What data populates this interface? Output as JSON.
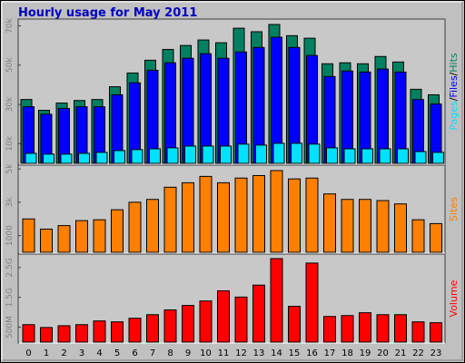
{
  "chart_data": [
    {
      "type": "bar",
      "title": "Hourly usage for May 2011",
      "legend_separator": "/",
      "ylim": [
        0,
        73000
      ],
      "yticks": [
        {
          "value": 10000,
          "label": "10k"
        },
        {
          "value": 30000,
          "label": "30k"
        },
        {
          "value": 50000,
          "label": "50k"
        },
        {
          "value": 70000,
          "label": "70k"
        }
      ],
      "series": [
        {
          "name": "Hits",
          "color": "#008060",
          "values": [
            32500,
            27000,
            30700,
            32000,
            32500,
            39000,
            46000,
            52500,
            58000,
            60000,
            62800,
            61400,
            68800,
            67000,
            70700,
            65000,
            63700,
            50700,
            51200,
            50700,
            54400,
            51600,
            37700,
            34900
          ]
        },
        {
          "name": "Files",
          "color": "#0000ff",
          "values": [
            28800,
            25000,
            27900,
            28800,
            28800,
            34900,
            41000,
            47400,
            51200,
            53500,
            55800,
            53500,
            56700,
            59000,
            64200,
            59000,
            54900,
            44200,
            47000,
            46500,
            48000,
            46500,
            32500,
            30200
          ]
        },
        {
          "name": "Pages",
          "color": "#00e0ff",
          "values": [
            5100,
            4700,
            4700,
            5100,
            5600,
            6500,
            7000,
            7400,
            7900,
            8800,
            8800,
            8800,
            9800,
            9300,
            10200,
            10200,
            9800,
            7900,
            7400,
            7400,
            7400,
            7400,
            6000,
            5600
          ]
        }
      ]
    },
    {
      "type": "bar",
      "ylim": [
        0,
        5170
      ],
      "yticks": [
        {
          "value": 1000,
          "label": "1000"
        },
        {
          "value": 3000,
          "label": "3k"
        },
        {
          "value": 5000,
          "label": "5k"
        }
      ],
      "series": [
        {
          "name": "Sites",
          "color": "#ff8000",
          "values": [
            2000,
            1390,
            1600,
            1900,
            1950,
            2550,
            3000,
            3170,
            3900,
            4170,
            4550,
            4170,
            4450,
            4600,
            4900,
            4400,
            4450,
            3500,
            3170,
            3170,
            3100,
            2900,
            1950,
            1720
          ]
        }
      ]
    },
    {
      "type": "bar",
      "ylim": [
        0,
        2920
      ],
      "yticks": [
        {
          "value": 500,
          "label": "500M"
        },
        {
          "value": 1500,
          "label": "1.5G"
        },
        {
          "value": 2500,
          "label": "2.5G"
        }
      ],
      "categories": [
        "0",
        "1",
        "2",
        "3",
        "4",
        "5",
        "6",
        "7",
        "8",
        "9",
        "10",
        "11",
        "12",
        "13",
        "14",
        "15",
        "16",
        "17",
        "18",
        "19",
        "20",
        "21",
        "22",
        "23"
      ],
      "series": [
        {
          "name": "Volume",
          "color": "#ff0000",
          "values": [
            585,
            490,
            550,
            585,
            710,
            680,
            800,
            920,
            1080,
            1230,
            1380,
            1720,
            1510,
            1910,
            2800,
            1200,
            2650,
            860,
            890,
            985,
            920,
            920,
            680,
            650
          ]
        }
      ]
    }
  ]
}
